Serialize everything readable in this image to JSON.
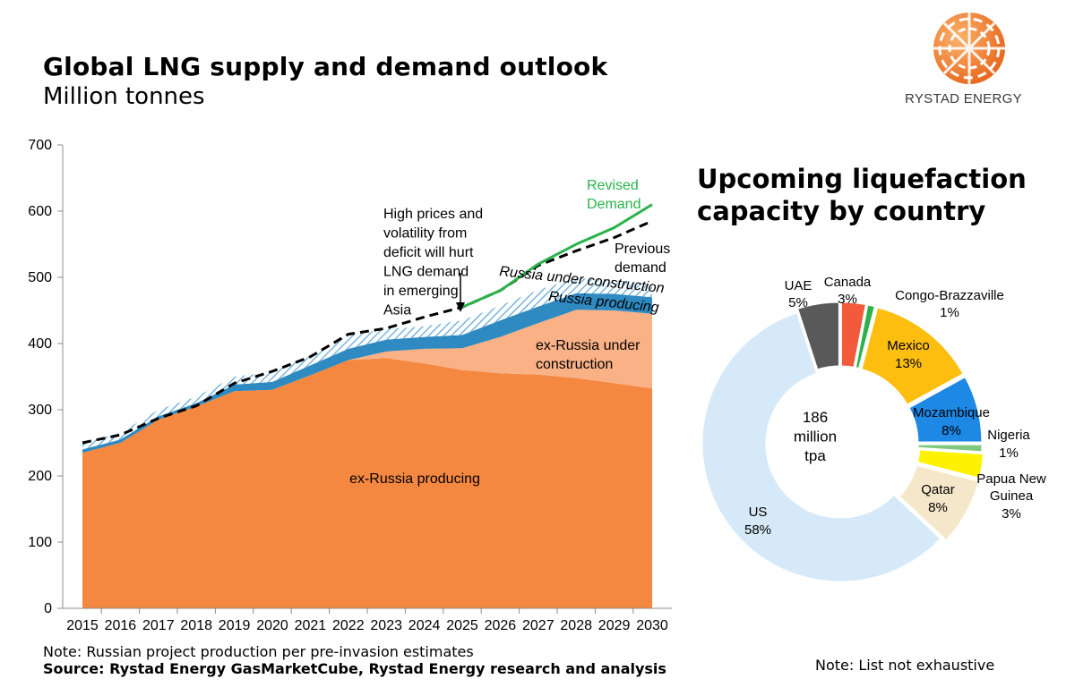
{
  "header": {
    "title": "Global LNG supply and demand outlook",
    "subtitle": "Million tonnes",
    "brand": "RYSTAD ENERGY"
  },
  "right_title": {
    "line1": "Upcoming liquefaction",
    "line2": "capacity by country"
  },
  "footer": {
    "note": "Note: Russian project production per pre-invasion estimates",
    "source": "Source: Rystad Energy GasMarketCube, Rystad Energy research and analysis",
    "note_right": "Note: List not exhaustive"
  },
  "colors": {
    "ex_russia_producing": "#F58841",
    "ex_russia_under_construction": "#F9B185",
    "russia_producing": "#2E8AC0",
    "russia_under_construction": "#9FCDEA",
    "revised_demand": "#2BB24C",
    "previous_demand": "#000000"
  },
  "chart_data": [
    {
      "type": "area",
      "title": "Global LNG supply and demand outlook",
      "ylabel": "Million tonnes",
      "ylim": [
        0,
        700
      ],
      "yticks": [
        0,
        100,
        200,
        300,
        400,
        500,
        600,
        700
      ],
      "x": [
        "2015",
        "2016",
        "2017",
        "2018",
        "2019",
        "2020",
        "2021",
        "2022",
        "2023",
        "2024",
        "2025",
        "2026",
        "2027",
        "2028",
        "2029",
        "2030"
      ],
      "series": [
        {
          "name": "ex-Russia producing",
          "values": [
            235,
            250,
            285,
            305,
            328,
            330,
            352,
            375,
            378,
            370,
            360,
            355,
            353,
            348,
            340,
            332
          ]
        },
        {
          "name": "ex-Russia under construction",
          "values": [
            0,
            0,
            0,
            0,
            0,
            0,
            0,
            0,
            10,
            22,
            33,
            55,
            78,
            103,
            110,
            113
          ]
        },
        {
          "name": "Russia producing",
          "values": [
            5,
            5,
            5,
            5,
            10,
            12,
            15,
            17,
            18,
            18,
            20,
            25,
            25,
            25,
            25,
            25
          ]
        },
        {
          "name": "Russia under construction",
          "values": [
            10,
            10,
            10,
            10,
            12,
            15,
            15,
            20,
            16,
            16,
            22,
            22,
            25,
            23,
            21,
            20
          ]
        }
      ],
      "lines": [
        {
          "name": "Revised Demand",
          "label_line1": "Revised",
          "label_line2": "Demand",
          "x_start": "2025",
          "values": [
            455,
            480,
            520,
            550,
            575,
            610
          ]
        },
        {
          "name": "Previous demand",
          "label_line1": "Previous",
          "label_line2": "demand",
          "values": [
            250,
            262,
            287,
            306,
            340,
            358,
            380,
            414,
            423,
            440,
            455,
            480,
            518,
            540,
            560,
            585
          ]
        }
      ],
      "annotations": {
        "high_prices": [
          "High prices and",
          "volatility from",
          "deficit will hurt",
          "LNG demand",
          "in emerging",
          "Asia"
        ],
        "ex_russia_producing": "ex-Russia producing",
        "ex_russia_under_construction": [
          "ex-Russia under",
          "construction"
        ],
        "russia_under_construction": "Russia under construction",
        "russia_producing": "Russia producing"
      }
    },
    {
      "type": "pie",
      "variant": "donut",
      "title": "Upcoming liquefaction capacity by country",
      "center_label": [
        "186",
        "million",
        "tpa"
      ],
      "slices": [
        {
          "name": "UAE",
          "value": 5,
          "label": "5%",
          "color": "#595959"
        },
        {
          "name": "Canada",
          "value": 3,
          "label": "3%",
          "color": "#F15A3A"
        },
        {
          "name": "Congo-Brazzaville",
          "value": 1,
          "label": "1%",
          "color": "#2BB24C"
        },
        {
          "name": "Mexico",
          "value": 13,
          "label": "13%",
          "color": "#FDBE10"
        },
        {
          "name": "Mozambique",
          "value": 8,
          "label": "8%",
          "color": "#1E88E5"
        },
        {
          "name": "Nigeria",
          "value": 1,
          "label": "1%",
          "color": "#7FC97F"
        },
        {
          "name": "Papua New Guinea",
          "value": 3,
          "label": "3%",
          "color": "#FFF200"
        },
        {
          "name": "Qatar",
          "value": 8,
          "label": "8%",
          "color": "#F5E7C9"
        },
        {
          "name": "US",
          "value": 58,
          "label": "58%",
          "color": "#D5E9F8"
        }
      ]
    }
  ]
}
